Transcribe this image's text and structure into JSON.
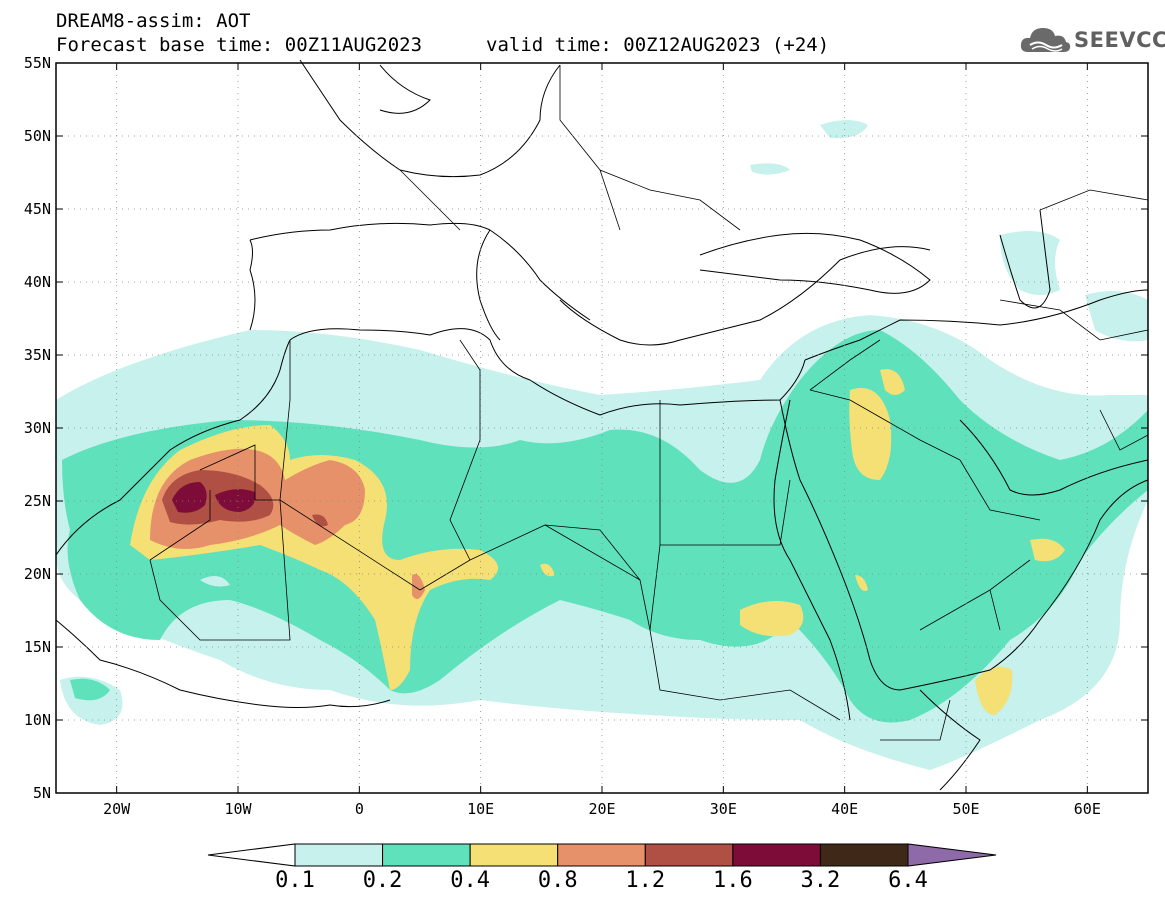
{
  "header": {
    "title_line1": "DREAM8-assim: AOT",
    "base_time": "Forecast base time: 00Z11AUG2023",
    "valid_time": "valid time: 00Z12AUG2023 (+24)",
    "logo_text": "SEEVCCC"
  },
  "map": {
    "lon_range": [
      -25,
      65
    ],
    "lat_range": [
      5,
      55
    ],
    "lat_ticks": [
      "5N",
      "10N",
      "15N",
      "20N",
      "25N",
      "30N",
      "35N",
      "40N",
      "45N",
      "50N",
      "55N"
    ],
    "lon_ticks": [
      "20W",
      "10W",
      "0",
      "10E",
      "20E",
      "30E",
      "40E",
      "50E",
      "60E"
    ]
  },
  "legend": {
    "levels": [
      "0.1",
      "0.2",
      "0.4",
      "0.8",
      "1.2",
      "1.6",
      "3.2",
      "6.4"
    ],
    "colors": [
      "#ffffff",
      "#c6f1ec",
      "#5fe1bb",
      "#f5e076",
      "#e6916a",
      "#b04f43",
      "#7d0d38",
      "#402818",
      "#8f6aa8"
    ]
  },
  "colors": {
    "c1": "#c6f1ec",
    "c2": "#5fe1bb",
    "c3": "#f5e076",
    "c4": "#e6916a",
    "c5": "#b04f43",
    "c6": "#7d0d38"
  }
}
